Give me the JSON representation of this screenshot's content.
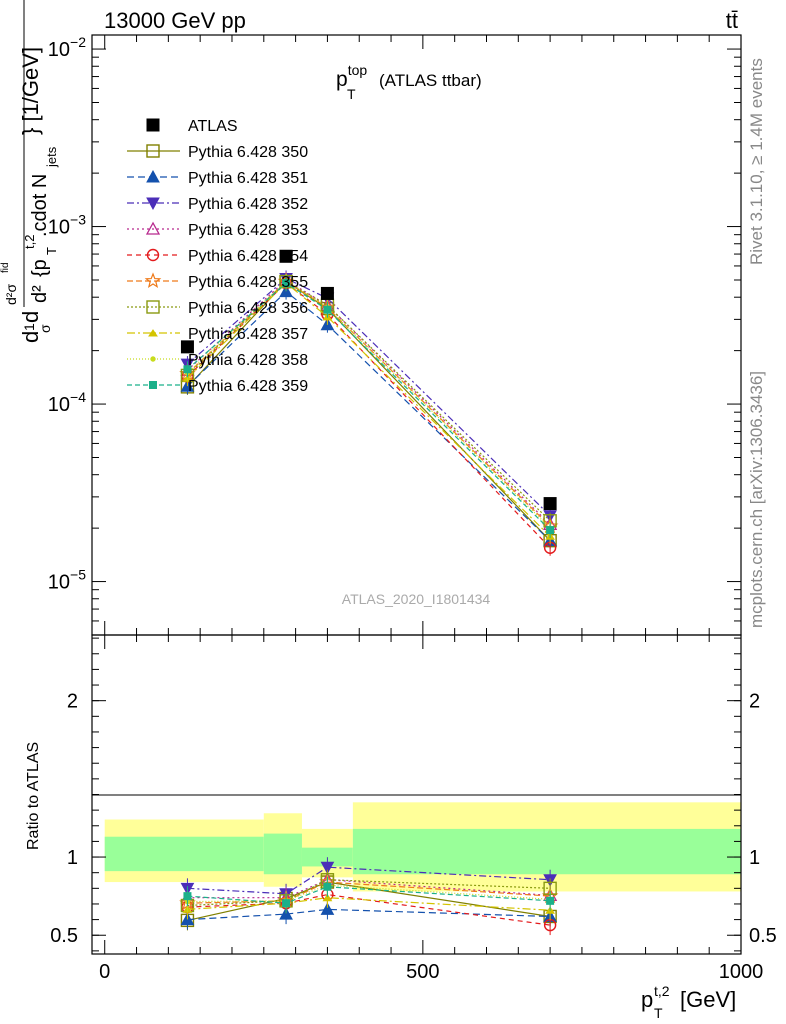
{
  "header": {
    "energy": "13000 GeV pp",
    "process": "tt̄",
    "rivet_note": "Rivet 3.1.10, ≥ 1.4M events",
    "source_note": "mcplots.cern.ch [arXiv:1306.3436]"
  },
  "chart_data": [
    {
      "type": "line",
      "title": "p_T^top (ATLAS ttbar)",
      "title_main": "p",
      "title_sub": "T",
      "title_sup": "top",
      "title_rest": "(ATLAS ttbar)",
      "analysis_label": "ATLAS_2020_I1801434",
      "yscale": "log",
      "ylim": [
        5e-06,
        0.012
      ],
      "xlim": [
        -20,
        1000
      ],
      "ylabel": "d²σᵗᵗ/d²{p_T^{t,2}.cdot N_jets} [1/GeV]",
      "ylabel_parts": {
        "d": "d",
        "one": "1",
        "sigma": "σ",
        "d2sigma": "d²σ",
        "sup": "fid",
        "d2": "d²",
        "brace": "{p",
        "brace_sub": "T",
        "brace_sup": "t,2",
        "cdot": ".cdot N",
        "jets": "jets",
        "unit": "} [1/GeV]"
      },
      "y_ticks": [
        {
          "value": 1e-05,
          "base": "10",
          "exp": "−5"
        },
        {
          "value": 0.0001,
          "base": "10",
          "exp": "−4"
        },
        {
          "value": 0.001,
          "base": "10",
          "exp": "−3"
        },
        {
          "value": 0.01,
          "base": "10",
          "exp": "−2"
        }
      ],
      "x": [
        130,
        285,
        350,
        700
      ],
      "data": {
        "name": "ATLAS",
        "values": [
          0.00021,
          0.00068,
          0.00042,
          2.75e-05
        ]
      },
      "series": [
        {
          "name": "Pythia 6.428 350",
          "color": "#808000",
          "marker": "square-open",
          "dash": "solid",
          "values": [
            0.000125,
            0.00049,
            0.000345,
            1.7e-05
          ]
        },
        {
          "name": "Pythia 6.428 351",
          "color": "#1451ad",
          "marker": "triangle-up-filled",
          "dash": "7,4",
          "values": [
            0.000126,
            0.00043,
            0.00028,
            1.7e-05
          ]
        },
        {
          "name": "Pythia 6.428 352",
          "color": "#4b2eb8",
          "marker": "triangle-down-filled",
          "dash": "7,3,2,3",
          "values": [
            0.000168,
            0.00051,
            0.000395,
            2.35e-05
          ]
        },
        {
          "name": "Pythia 6.428 353",
          "color": "#b8298e",
          "marker": "triangle-up-open",
          "dash": "2,3",
          "values": [
            0.000155,
            0.0005,
            0.00036,
            2.1e-05
          ]
        },
        {
          "name": "Pythia 6.428 354",
          "color": "#e31a1c",
          "marker": "circle-open",
          "dash": "5,4",
          "values": [
            0.000143,
            0.00048,
            0.00032,
            1.55e-05
          ]
        },
        {
          "name": "Pythia 6.428 355",
          "color": "#ef7a1a",
          "marker": "star-open",
          "dash": "6,3",
          "values": [
            0.000148,
            0.00049,
            0.00035,
            2.05e-05
          ]
        },
        {
          "name": "Pythia 6.428 356",
          "color": "#8a9a10",
          "marker": "square-open",
          "dash": "2,2",
          "values": [
            0.000145,
            0.00049,
            0.00036,
            2.2e-05
          ]
        },
        {
          "name": "Pythia 6.428 357",
          "color": "#d4c400",
          "marker": "tri-small",
          "dash": "8,3,2,3",
          "values": [
            0.00014,
            0.00048,
            0.00031,
            1.8e-05
          ]
        },
        {
          "name": "Pythia 6.428 358",
          "color": "#c8dc1c",
          "marker": "dot-small",
          "dash": "1,2",
          "values": [
            0.00015,
            0.00049,
            0.00035,
            2e-05
          ]
        },
        {
          "name": "Pythia 6.428 359",
          "color": "#1bb08a",
          "marker": "square-small-filled",
          "dash": "5,3",
          "values": [
            0.000157,
            0.00048,
            0.00034,
            1.95e-05
          ]
        }
      ]
    },
    {
      "type": "line",
      "ylabel": "Ratio to ATLAS",
      "xlabel": "p_T^{t,2} [GeV]",
      "xlabel_parts": {
        "p": "p",
        "sub": "T",
        "sup": "t,2",
        "unit": "[GeV]"
      },
      "ylim": [
        0.38,
        2.42
      ],
      "xlim": [
        -20,
        1000
      ],
      "y_ticks": [
        0.5,
        1,
        2
      ],
      "y_tick_labels": [
        "0.5",
        "1",
        "2"
      ],
      "x_ticks": [
        0,
        500,
        1000
      ],
      "x_tick_labels": [
        "0",
        "500",
        "1000"
      ],
      "bands": [
        {
          "x0": 0,
          "x1": 250,
          "yellow": [
            0.84,
            1.24
          ],
          "green": [
            0.91,
            1.13
          ]
        },
        {
          "x0": 250,
          "x1": 310,
          "yellow": [
            0.81,
            1.28
          ],
          "green": [
            0.89,
            1.15
          ]
        },
        {
          "x0": 310,
          "x1": 390,
          "yellow": [
            0.87,
            1.18
          ],
          "green": [
            0.94,
            1.06
          ]
        },
        {
          "x0": 390,
          "x1": 1000,
          "yellow": [
            0.78,
            1.35
          ],
          "green": [
            0.89,
            1.18
          ]
        }
      ],
      "series": [
        {
          "name": "Pythia 6.428 350",
          "values": [
            0.595,
            0.735,
            0.84,
            0.62
          ]
        },
        {
          "name": "Pythia 6.428 351",
          "values": [
            0.6,
            0.635,
            0.665,
            0.62
          ]
        },
        {
          "name": "Pythia 6.428 352",
          "values": [
            0.8,
            0.765,
            0.935,
            0.855
          ]
        },
        {
          "name": "Pythia 6.428 353",
          "values": [
            0.74,
            0.74,
            0.855,
            0.755
          ]
        },
        {
          "name": "Pythia 6.428 354",
          "values": [
            0.68,
            0.705,
            0.76,
            0.565
          ]
        },
        {
          "name": "Pythia 6.428 355",
          "values": [
            0.705,
            0.72,
            0.84,
            0.75
          ]
        },
        {
          "name": "Pythia 6.428 356",
          "values": [
            0.69,
            0.72,
            0.855,
            0.8
          ]
        },
        {
          "name": "Pythia 6.428 357",
          "values": [
            0.665,
            0.705,
            0.74,
            0.66
          ]
        },
        {
          "name": "Pythia 6.428 358",
          "values": [
            0.715,
            0.72,
            0.82,
            0.73
          ]
        },
        {
          "name": "Pythia 6.428 359",
          "values": [
            0.75,
            0.705,
            0.81,
            0.72
          ]
        }
      ]
    }
  ]
}
